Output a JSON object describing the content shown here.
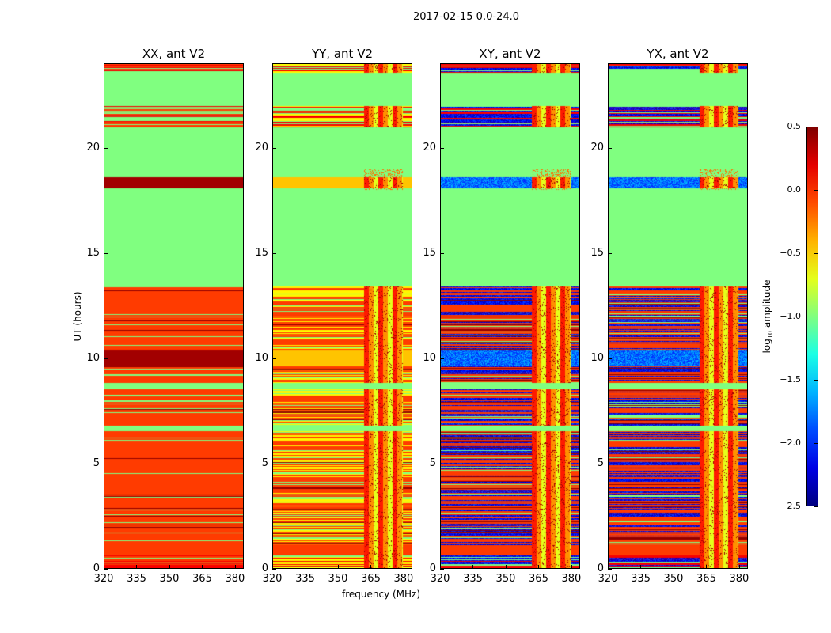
{
  "chart_data": {
    "type": "heatmap",
    "title": "2017-02-15 0.0-24.0",
    "xlabel": "frequency (MHz)",
    "ylabel": "UT (hours)",
    "xlim": [
      320,
      384
    ],
    "ylim": [
      0,
      24
    ],
    "xticks": [
      "320",
      "335",
      "350",
      "365",
      "380"
    ],
    "xtick_values": [
      320,
      335,
      350,
      365,
      380
    ],
    "yticks": [
      "0",
      "5",
      "10",
      "15",
      "20"
    ],
    "ytick_values": [
      0,
      5,
      10,
      15,
      20
    ],
    "colorbar": {
      "label": "log10 amplitude",
      "label_main": "log",
      "label_sub": "10",
      "label_rest": " amplitude",
      "colormap": "jet",
      "range": [
        -2.5,
        0.5
      ],
      "ticks": [
        "0.5",
        "0.0",
        "−0.5",
        "−1.0",
        "−1.5",
        "−2.0",
        "−2.5"
      ],
      "tick_values": [
        0.5,
        0.0,
        -0.5,
        -1.0,
        -1.5,
        -2.0,
        -2.5
      ]
    },
    "rfi_band_mhz": [
      362,
      380
    ],
    "panels": [
      {
        "title": "XX, ant V2",
        "high_level": -0.05,
        "peak_level": 0.4,
        "low_level": -0.05,
        "low_fraction": 0.0
      },
      {
        "title": "YY, ant V2",
        "high_level": -0.05,
        "peak_level": -0.45,
        "low_level": -0.6,
        "low_fraction": 0.3
      },
      {
        "title": "XY, ant V2",
        "high_level": -0.05,
        "peak_level": -1.8,
        "low_level": -2.15,
        "low_fraction": 0.35
      },
      {
        "title": "YX, ant V2",
        "high_level": -0.05,
        "peak_level": -1.8,
        "low_level": -2.15,
        "low_fraction": 0.35
      }
    ],
    "flagged_level": -1.0,
    "time_bands": [
      {
        "t0": 0.0,
        "t1": 0.6,
        "kind": "mixed"
      },
      {
        "t0": 0.6,
        "t1": 1.1,
        "kind": "high"
      },
      {
        "t0": 1.1,
        "t1": 6.5,
        "kind": "striped"
      },
      {
        "t0": 6.5,
        "t1": 6.8,
        "kind": "flagged"
      },
      {
        "t0": 6.8,
        "t1": 8.5,
        "kind": "striped"
      },
      {
        "t0": 8.5,
        "t1": 8.8,
        "kind": "flagged"
      },
      {
        "t0": 8.8,
        "t1": 9.6,
        "kind": "striped"
      },
      {
        "t0": 9.6,
        "t1": 10.4,
        "kind": "peak"
      },
      {
        "t0": 10.4,
        "t1": 13.4,
        "kind": "striped"
      },
      {
        "t0": 13.4,
        "t1": 18.1,
        "kind": "flagged"
      },
      {
        "t0": 18.1,
        "t1": 18.6,
        "kind": "peak"
      },
      {
        "t0": 18.6,
        "t1": 21.0,
        "kind": "flagged"
      },
      {
        "t0": 21.0,
        "t1": 22.0,
        "kind": "mixed"
      },
      {
        "t0": 22.0,
        "t1": 23.6,
        "kind": "flagged"
      },
      {
        "t0": 23.6,
        "t1": 24.0,
        "kind": "mixed"
      }
    ]
  }
}
